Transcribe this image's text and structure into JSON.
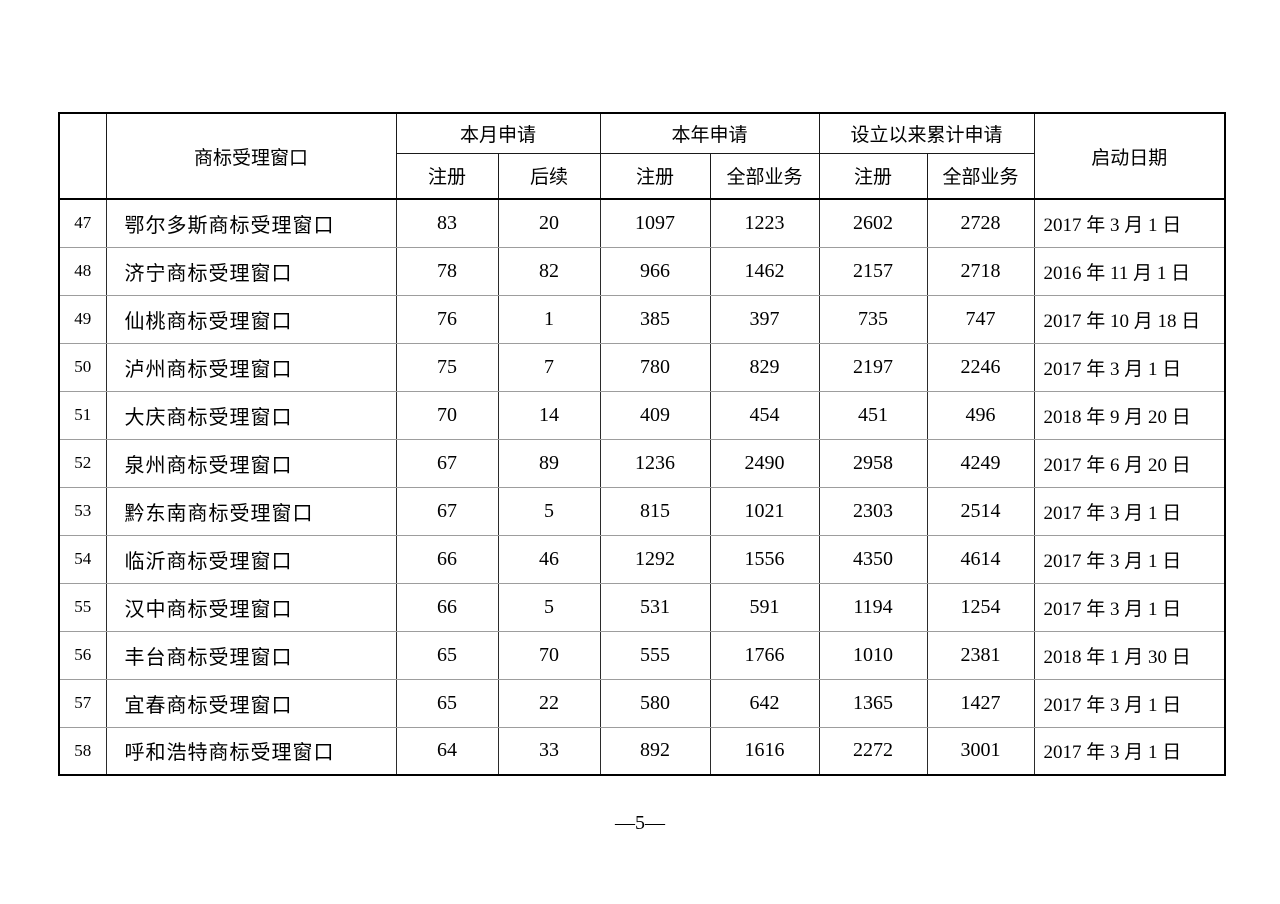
{
  "page": {
    "footer": "—5—"
  },
  "table": {
    "corner_header": "",
    "name_header": "商标受理窗口",
    "groups": [
      {
        "label": "本月申请",
        "subs": [
          "注册",
          "后续"
        ]
      },
      {
        "label": "本年申请",
        "subs": [
          "注册",
          "全部业务"
        ]
      },
      {
        "label": "设立以来累计申请",
        "subs": [
          "注册",
          "全部业务"
        ]
      }
    ],
    "date_header": "启动日期",
    "rows": [
      {
        "no": "47",
        "name": "鄂尔多斯商标受理窗口",
        "values": [
          "83",
          "20",
          "1097",
          "1223",
          "2602",
          "2728"
        ],
        "date": "2017 年 3 月 1 日"
      },
      {
        "no": "48",
        "name": "济宁商标受理窗口",
        "values": [
          "78",
          "82",
          "966",
          "1462",
          "2157",
          "2718"
        ],
        "date": "2016 年 11 月 1 日"
      },
      {
        "no": "49",
        "name": "仙桃商标受理窗口",
        "values": [
          "76",
          "1",
          "385",
          "397",
          "735",
          "747"
        ],
        "date": "2017 年 10 月 18 日"
      },
      {
        "no": "50",
        "name": "泸州商标受理窗口",
        "values": [
          "75",
          "7",
          "780",
          "829",
          "2197",
          "2246"
        ],
        "date": "2017 年 3 月 1 日"
      },
      {
        "no": "51",
        "name": "大庆商标受理窗口",
        "values": [
          "70",
          "14",
          "409",
          "454",
          "451",
          "496"
        ],
        "date": "2018 年 9 月 20 日"
      },
      {
        "no": "52",
        "name": "泉州商标受理窗口",
        "values": [
          "67",
          "89",
          "1236",
          "2490",
          "2958",
          "4249"
        ],
        "date": "2017 年 6 月 20 日"
      },
      {
        "no": "53",
        "name": "黔东南商标受理窗口",
        "values": [
          "67",
          "5",
          "815",
          "1021",
          "2303",
          "2514"
        ],
        "date": "2017 年 3 月 1 日"
      },
      {
        "no": "54",
        "name": "临沂商标受理窗口",
        "values": [
          "66",
          "46",
          "1292",
          "1556",
          "4350",
          "4614"
        ],
        "date": "2017 年 3 月 1 日"
      },
      {
        "no": "55",
        "name": "汉中商标受理窗口",
        "values": [
          "66",
          "5",
          "531",
          "591",
          "1194",
          "1254"
        ],
        "date": "2017 年 3 月 1 日"
      },
      {
        "no": "56",
        "name": "丰台商标受理窗口",
        "values": [
          "65",
          "70",
          "555",
          "1766",
          "1010",
          "2381"
        ],
        "date": "2018 年 1 月 30 日"
      },
      {
        "no": "57",
        "name": "宜春商标受理窗口",
        "values": [
          "65",
          "22",
          "580",
          "642",
          "1365",
          "1427"
        ],
        "date": "2017 年 3 月 1 日"
      },
      {
        "no": "58",
        "name": "呼和浩特商标受理窗口",
        "values": [
          "64",
          "33",
          "892",
          "1616",
          "2272",
          "3001"
        ],
        "date": "2017 年 3 月 1 日"
      }
    ]
  }
}
